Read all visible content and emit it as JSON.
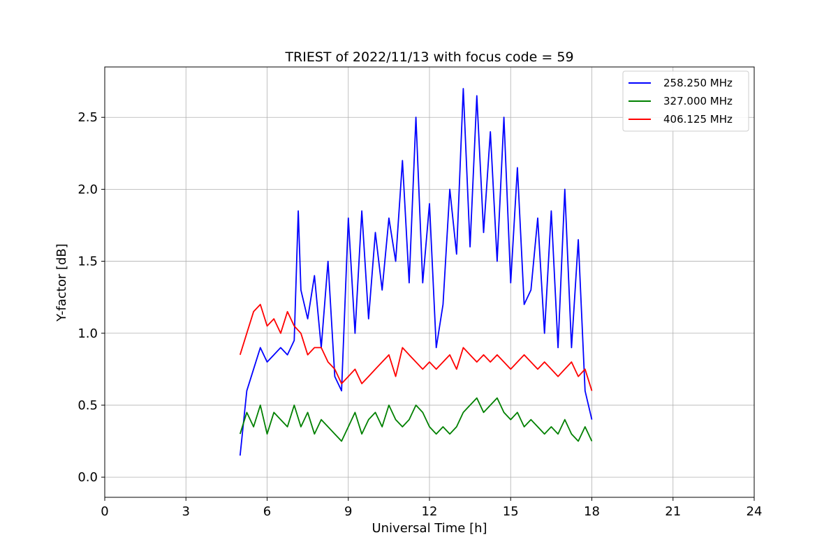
{
  "chart_data": {
    "type": "line",
    "title": "TRIEST of 2022/11/13 with focus code = 59",
    "xlabel": "Universal Time [h]",
    "ylabel": "Y-factor [dB]",
    "xlim": [
      0,
      24
    ],
    "ylim": [
      -0.14,
      2.85
    ],
    "xticks": [
      0,
      3,
      6,
      9,
      12,
      15,
      18,
      21,
      24
    ],
    "yticks": [
      0.0,
      0.5,
      1.0,
      1.5,
      2.0,
      2.5
    ],
    "ytick_labels": [
      "0.0",
      "0.5",
      "1.0",
      "1.5",
      "2.0",
      "2.5"
    ],
    "grid": true,
    "legend_position": "top-right",
    "series": [
      {
        "name": "258.250 MHz",
        "color": "#0000ff",
        "x": [
          5.0,
          5.25,
          5.5,
          5.75,
          6.0,
          6.25,
          6.5,
          6.75,
          7.0,
          7.15,
          7.25,
          7.5,
          7.75,
          8.0,
          8.25,
          8.5,
          8.75,
          9.0,
          9.25,
          9.5,
          9.75,
          10.0,
          10.25,
          10.5,
          10.75,
          11.0,
          11.25,
          11.5,
          11.75,
          12.0,
          12.25,
          12.5,
          12.75,
          13.0,
          13.25,
          13.5,
          13.75,
          14.0,
          14.25,
          14.5,
          14.75,
          15.0,
          15.25,
          15.5,
          15.75,
          16.0,
          16.25,
          16.5,
          16.75,
          17.0,
          17.25,
          17.5,
          17.75,
          18.0
        ],
        "y": [
          0.15,
          0.6,
          0.75,
          0.9,
          0.8,
          0.85,
          0.9,
          0.85,
          0.95,
          1.85,
          1.3,
          1.1,
          1.4,
          0.9,
          1.5,
          0.7,
          0.6,
          1.8,
          1.0,
          1.85,
          1.1,
          1.7,
          1.3,
          1.8,
          1.5,
          2.2,
          1.35,
          2.5,
          1.35,
          1.9,
          0.9,
          1.2,
          2.0,
          1.55,
          2.7,
          1.6,
          2.65,
          1.7,
          2.4,
          1.5,
          2.5,
          1.35,
          2.15,
          1.2,
          1.3,
          1.8,
          1.0,
          1.85,
          0.9,
          2.0,
          0.9,
          1.65,
          0.6,
          0.4
        ]
      },
      {
        "name": "327.000 MHz",
        "color": "#008000",
        "x": [
          5.0,
          5.25,
          5.5,
          5.75,
          6.0,
          6.25,
          6.5,
          6.75,
          7.0,
          7.25,
          7.5,
          7.75,
          8.0,
          8.25,
          8.5,
          8.75,
          9.0,
          9.25,
          9.5,
          9.75,
          10.0,
          10.25,
          10.5,
          10.75,
          11.0,
          11.25,
          11.5,
          11.75,
          12.0,
          12.25,
          12.5,
          12.75,
          13.0,
          13.25,
          13.5,
          13.75,
          14.0,
          14.25,
          14.5,
          14.75,
          15.0,
          15.25,
          15.5,
          15.75,
          16.0,
          16.25,
          16.5,
          16.75,
          17.0,
          17.25,
          17.5,
          17.75,
          18.0
        ],
        "y": [
          0.3,
          0.45,
          0.35,
          0.5,
          0.3,
          0.45,
          0.4,
          0.35,
          0.5,
          0.35,
          0.45,
          0.3,
          0.4,
          0.35,
          0.3,
          0.25,
          0.35,
          0.45,
          0.3,
          0.4,
          0.45,
          0.35,
          0.5,
          0.4,
          0.35,
          0.4,
          0.5,
          0.45,
          0.35,
          0.3,
          0.35,
          0.3,
          0.35,
          0.45,
          0.5,
          0.55,
          0.45,
          0.5,
          0.55,
          0.45,
          0.4,
          0.45,
          0.35,
          0.4,
          0.35,
          0.3,
          0.35,
          0.3,
          0.4,
          0.3,
          0.25,
          0.35,
          0.25
        ]
      },
      {
        "name": "406.125 MHz",
        "color": "#ff0000",
        "x": [
          5.0,
          5.25,
          5.5,
          5.75,
          6.0,
          6.25,
          6.5,
          6.75,
          7.0,
          7.25,
          7.5,
          7.75,
          8.0,
          8.25,
          8.5,
          8.75,
          9.0,
          9.25,
          9.5,
          9.75,
          10.0,
          10.25,
          10.5,
          10.75,
          11.0,
          11.25,
          11.5,
          11.75,
          12.0,
          12.25,
          12.5,
          12.75,
          13.0,
          13.25,
          13.5,
          13.75,
          14.0,
          14.25,
          14.5,
          14.75,
          15.0,
          15.25,
          15.5,
          15.75,
          16.0,
          16.25,
          16.5,
          16.75,
          17.0,
          17.25,
          17.5,
          17.75,
          18.0
        ],
        "y": [
          0.85,
          1.0,
          1.15,
          1.2,
          1.05,
          1.1,
          1.0,
          1.15,
          1.05,
          1.0,
          0.85,
          0.9,
          0.9,
          0.8,
          0.75,
          0.65,
          0.7,
          0.75,
          0.65,
          0.7,
          0.75,
          0.8,
          0.85,
          0.7,
          0.9,
          0.85,
          0.8,
          0.75,
          0.8,
          0.75,
          0.8,
          0.85,
          0.75,
          0.9,
          0.85,
          0.8,
          0.85,
          0.8,
          0.85,
          0.8,
          0.75,
          0.8,
          0.85,
          0.8,
          0.75,
          0.8,
          0.75,
          0.7,
          0.75,
          0.8,
          0.7,
          0.75,
          0.6
        ]
      }
    ]
  }
}
